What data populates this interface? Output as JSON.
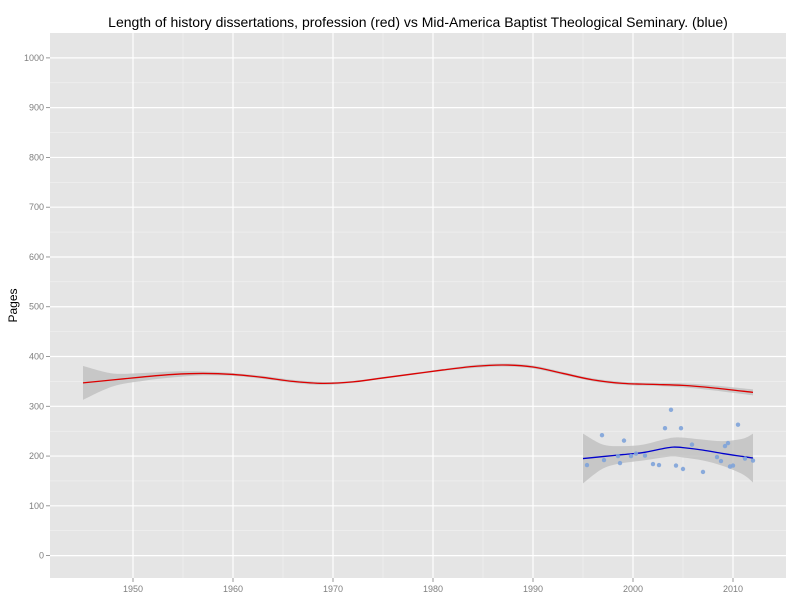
{
  "chart_data": {
    "type": "scatter",
    "title": "Length of history dissertations, profession (red) vs Mid-America Baptist Theological Seminary. (blue)",
    "xlabel": "",
    "ylabel": "Pages",
    "xlim": [
      1941.7,
      2015.3
    ],
    "ylim": [
      -45,
      1050
    ],
    "x_ticks": [
      1950,
      1960,
      1970,
      1980,
      1990,
      2000,
      2010
    ],
    "y_ticks": [
      0,
      100,
      200,
      300,
      400,
      500,
      600,
      700,
      800,
      900,
      1000
    ],
    "grid": true,
    "legend": "none",
    "colors": {
      "panel": "#e5e5e5",
      "grid_major": "#ffffff",
      "grid_minor": "#f2f2f2",
      "profession": "#dd0000",
      "seminary_line": "#0000cc",
      "seminary_points": "#7ea3d9",
      "ribbon": "#c2c2c2"
    },
    "series": [
      {
        "kind": "smooth",
        "color": "#dd0000",
        "x": [
          1945,
          1948,
          1951,
          1954,
          1957,
          1960,
          1963,
          1966,
          1969,
          1972,
          1975,
          1978,
          1981,
          1984,
          1987,
          1990,
          1993,
          1996,
          1999,
          2002,
          2005,
          2008,
          2012
        ],
        "y": [
          347,
          353,
          359,
          364,
          366,
          364,
          358,
          350,
          346,
          349,
          357,
          365,
          373,
          380,
          383,
          379,
          366,
          353,
          346,
          344,
          342,
          337,
          328
        ],
        "ci_lower": [
          313,
          340,
          351,
          358,
          362,
          361,
          355,
          347,
          343,
          347,
          355,
          363,
          371,
          377,
          380,
          376,
          363,
          350,
          343,
          341,
          338,
          332,
          322
        ],
        "ci_upper": [
          381,
          366,
          367,
          370,
          370,
          367,
          361,
          353,
          349,
          351,
          359,
          367,
          375,
          383,
          386,
          382,
          369,
          356,
          349,
          347,
          346,
          342,
          334
        ]
      },
      {
        "kind": "smooth",
        "color": "#0000cc",
        "x": [
          1995,
          1997,
          1999,
          2001,
          2003,
          2004,
          2005,
          2007,
          2009,
          2011,
          2012
        ],
        "y": [
          195,
          199,
          203,
          207,
          215,
          218,
          217,
          212,
          205,
          199,
          196
        ],
        "ci_lower": [
          145,
          175,
          186,
          191,
          197,
          199,
          197,
          191,
          180,
          163,
          147
        ],
        "ci_upper": [
          245,
          223,
          220,
          223,
          233,
          237,
          237,
          233,
          230,
          235,
          245
        ]
      },
      {
        "kind": "points",
        "color": "#7ea3d9",
        "x": [
          1995.4,
          1996.9,
          1997.1,
          1998.5,
          1998.7,
          1999.1,
          1999.8,
          2000.3,
          2001.2,
          2002.0,
          2002.6,
          2003.2,
          2003.8,
          2004.3,
          2004.8,
          2005.0,
          2005.9,
          2007.0,
          2008.4,
          2008.8,
          2009.2,
          2009.5,
          2009.7,
          2010.0,
          2010.5,
          2011.2,
          2012.0
        ],
        "y": [
          182,
          242,
          192,
          200,
          186,
          231,
          200,
          205,
          201,
          184,
          182,
          256,
          293,
          181,
          256,
          174,
          223,
          168,
          198,
          190,
          220,
          226,
          179,
          181,
          263,
          195,
          191
        ]
      }
    ]
  }
}
